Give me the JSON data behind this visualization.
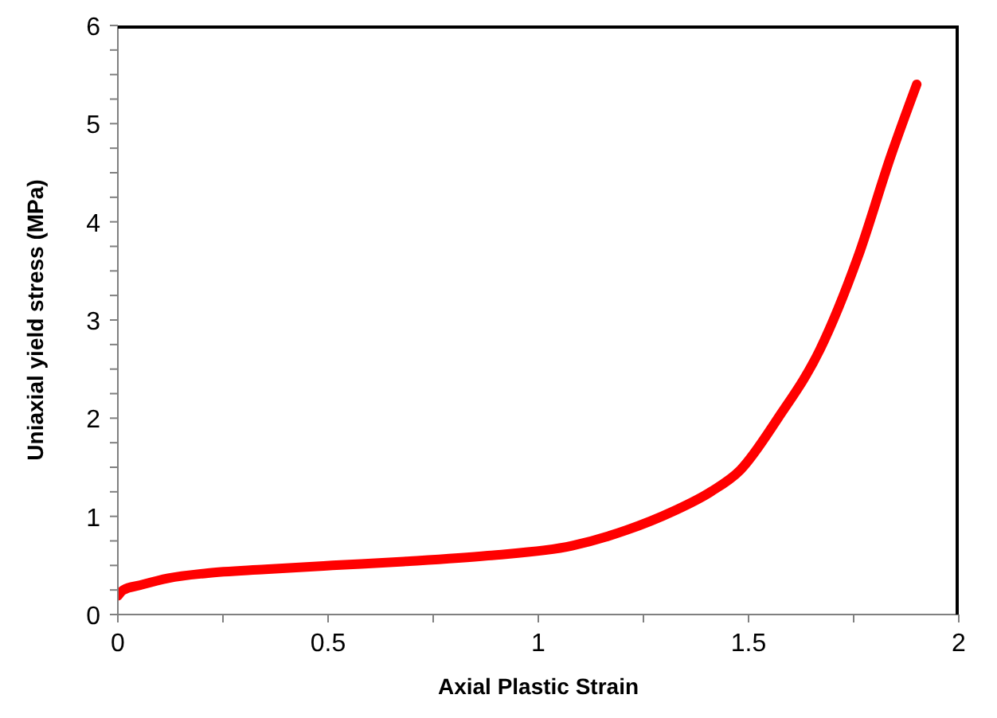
{
  "chart_data": {
    "type": "line",
    "xlabel": "Axial Plastic Strain",
    "ylabel": "Uniaxial yield stress (MPa)",
    "x": [
      0,
      0.013,
      0.054,
      0.12,
      0.21,
      0.35,
      0.51,
      0.68,
      0.88,
      1.08,
      1.21,
      1.32,
      1.41,
      1.48,
      1.57,
      1.67,
      1.76,
      1.84,
      1.9
    ],
    "series": [
      {
        "color": "#ff0000",
        "values": [
          0.19,
          0.25,
          0.3,
          0.37,
          0.42,
          0.46,
          0.5,
          0.54,
          0.6,
          0.7,
          0.86,
          1.05,
          1.25,
          1.47,
          2.0,
          2.7,
          3.64,
          4.69,
          5.4
        ]
      }
    ],
    "xlim": [
      0,
      2
    ],
    "ylim": [
      0,
      6
    ],
    "xticks": [
      0,
      {
        "value": 0.25,
        "label": null
      },
      0.5,
      {
        "value": 0.75,
        "label": null
      },
      1,
      {
        "value": 1.25,
        "label": null
      },
      1.5,
      {
        "value": 1.75,
        "label": null
      },
      2
    ],
    "yticks": [
      0,
      {
        "value": 0.25,
        "label": null
      },
      {
        "value": 0.5,
        "label": null
      },
      {
        "value": 0.75,
        "label": null
      },
      1,
      {
        "value": 1.25,
        "label": null
      },
      {
        "value": 1.5,
        "label": null
      },
      {
        "value": 1.75,
        "label": null
      },
      2,
      {
        "value": 2.25,
        "label": null
      },
      {
        "value": 2.5,
        "label": null
      },
      {
        "value": 2.75,
        "label": null
      },
      3,
      {
        "value": 3.25,
        "label": null
      },
      {
        "value": 3.5,
        "label": null
      },
      {
        "value": 3.75,
        "label": null
      },
      4,
      {
        "value": 4.25,
        "label": null
      },
      {
        "value": 4.5,
        "label": null
      },
      {
        "value": 4.75,
        "label": null
      },
      5,
      {
        "value": 5.25,
        "label": null
      },
      {
        "value": 5.5,
        "label": null
      },
      {
        "value": 5.75,
        "label": null
      },
      6
    ],
    "grid": false,
    "legend": false,
    "marker": "none",
    "line_style": "solid"
  }
}
